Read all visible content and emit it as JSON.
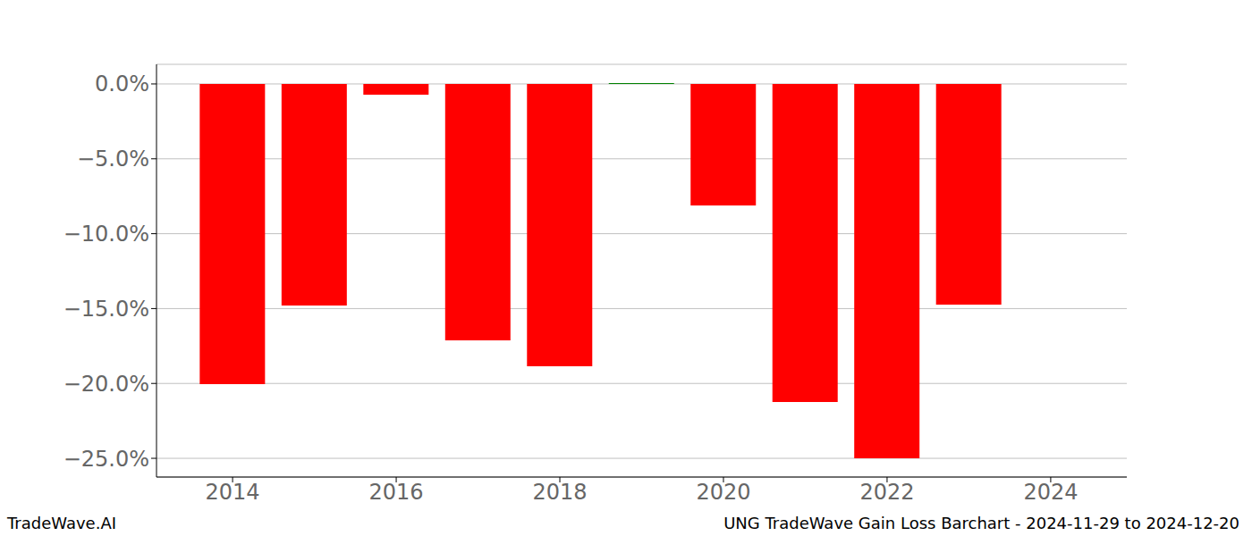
{
  "chart_data": {
    "type": "bar",
    "title": "UNG TradeWave Gain Loss Barchart - 2024-11-29 to 2024-12-20",
    "annotations": [
      "TradeWave.AI"
    ],
    "x": [
      2014,
      2015,
      2016,
      2017,
      2018,
      2019,
      2020,
      2021,
      2022,
      2023
    ],
    "values": [
      -20.05,
      -14.8,
      -0.72,
      -17.12,
      -18.85,
      0.05,
      -8.11,
      -21.24,
      -25.0,
      -14.74
    ],
    "colors": [
      "#ff0000",
      "#ff0000",
      "#ff0000",
      "#ff0000",
      "#ff0000",
      "#008000",
      "#ff0000",
      "#ff0000",
      "#ff0000",
      "#ff0000"
    ],
    "xlim": [
      2013.07,
      2024.93
    ],
    "xticks": [
      2014,
      2016,
      2018,
      2020,
      2022,
      2024
    ],
    "ylim": [
      -26.25,
      1.31
    ],
    "yticks": [
      {
        "value": -25,
        "label": "−25.0%"
      },
      {
        "value": -20,
        "label": "−20.0%"
      },
      {
        "value": -15,
        "label": "−15.0%"
      },
      {
        "value": -10,
        "label": "−10.0%"
      },
      {
        "value": -5,
        "label": "−5.0%"
      },
      {
        "value": 0,
        "label": "0.0%"
      }
    ],
    "grid": true
  }
}
